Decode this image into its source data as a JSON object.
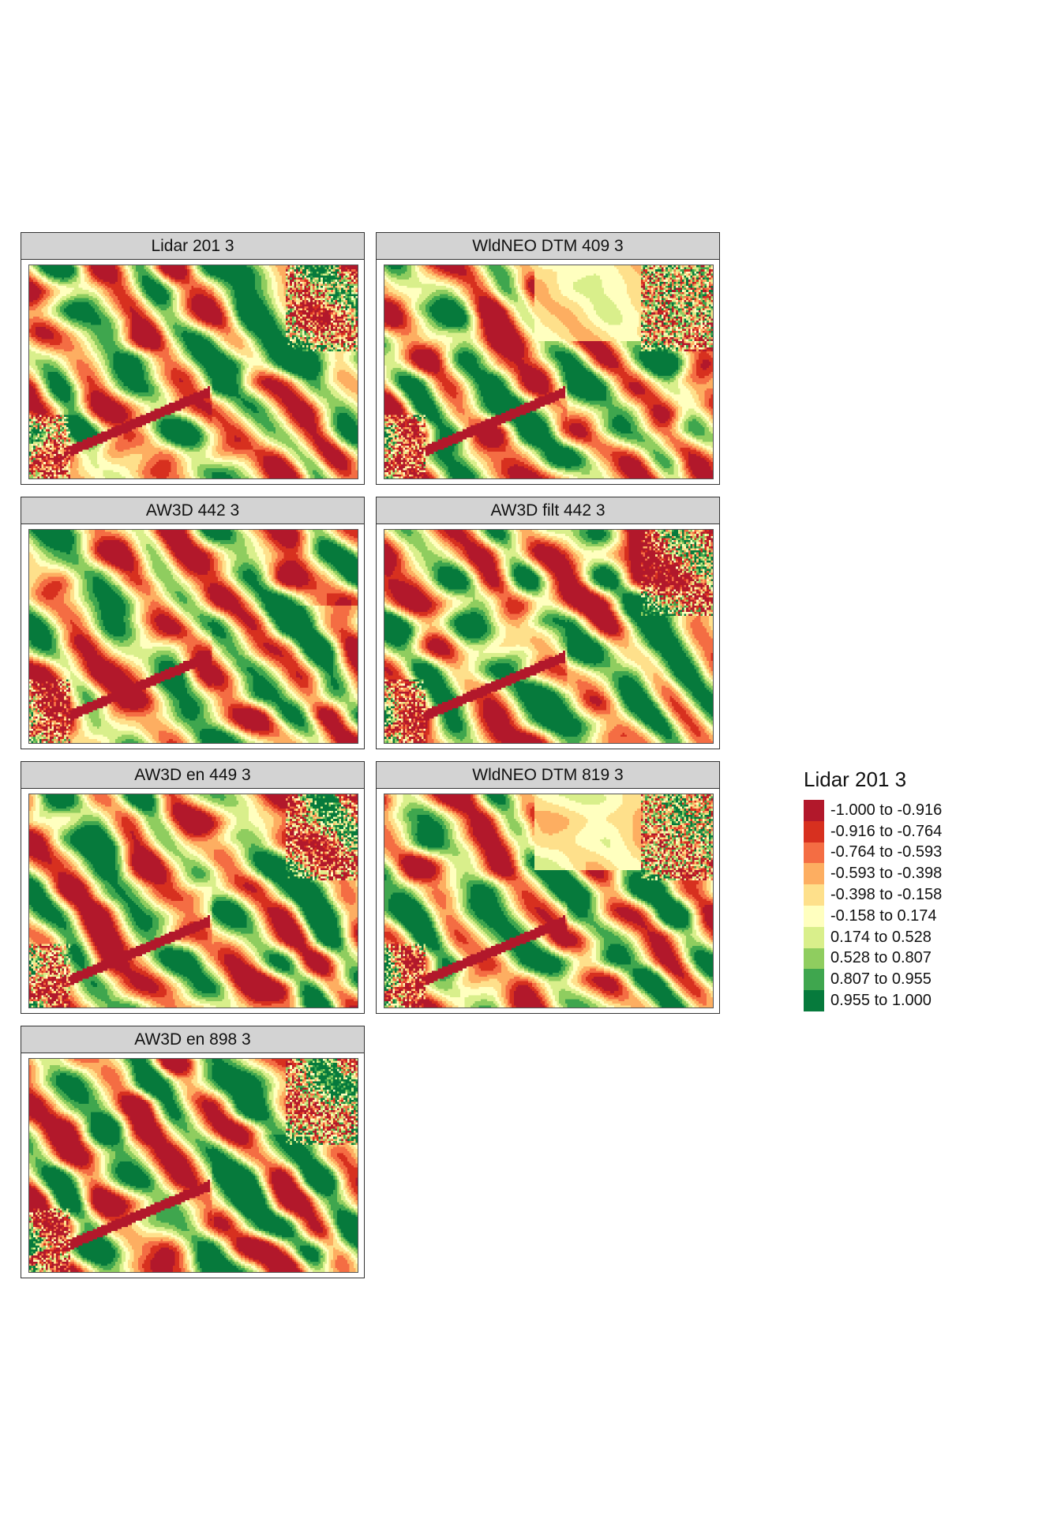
{
  "panels": [
    {
      "title": "Lidar 201 3",
      "variant": 0
    },
    {
      "title": "WldNEO DTM 409 3",
      "variant": 1
    },
    {
      "title": "AW3D 442 3",
      "variant": 2
    },
    {
      "title": "AW3D filt 442 3",
      "variant": 3
    },
    {
      "title": "AW3D en 449 3",
      "variant": 4
    },
    {
      "title": "WldNEO DTM 819 3",
      "variant": 5
    },
    {
      "title": "AW3D en 898 3",
      "variant": 6
    }
  ],
  "legend": {
    "title": "Lidar 201 3",
    "classes": [
      {
        "label": "-1.000 to -0.916",
        "color": "#b2182b"
      },
      {
        "label": "-0.916 to -0.764",
        "color": "#d7301f"
      },
      {
        "label": "-0.764 to -0.593",
        "color": "#f46d43"
      },
      {
        "label": "-0.593 to -0.398",
        "color": "#fdae61"
      },
      {
        "label": "-0.398 to -0.158",
        "color": "#fee08b"
      },
      {
        "label": "-0.158 to 0.174",
        "color": "#ffffbf"
      },
      {
        "label": "0.174 to 0.528",
        "color": "#d9ef8b"
      },
      {
        "label": "0.528 to 0.807",
        "color": "#8fcd5f"
      },
      {
        "label": "0.807 to 0.955",
        "color": "#3fa64e"
      },
      {
        "label": "0.955 to 1.000",
        "color": "#067a3c"
      }
    ]
  }
}
